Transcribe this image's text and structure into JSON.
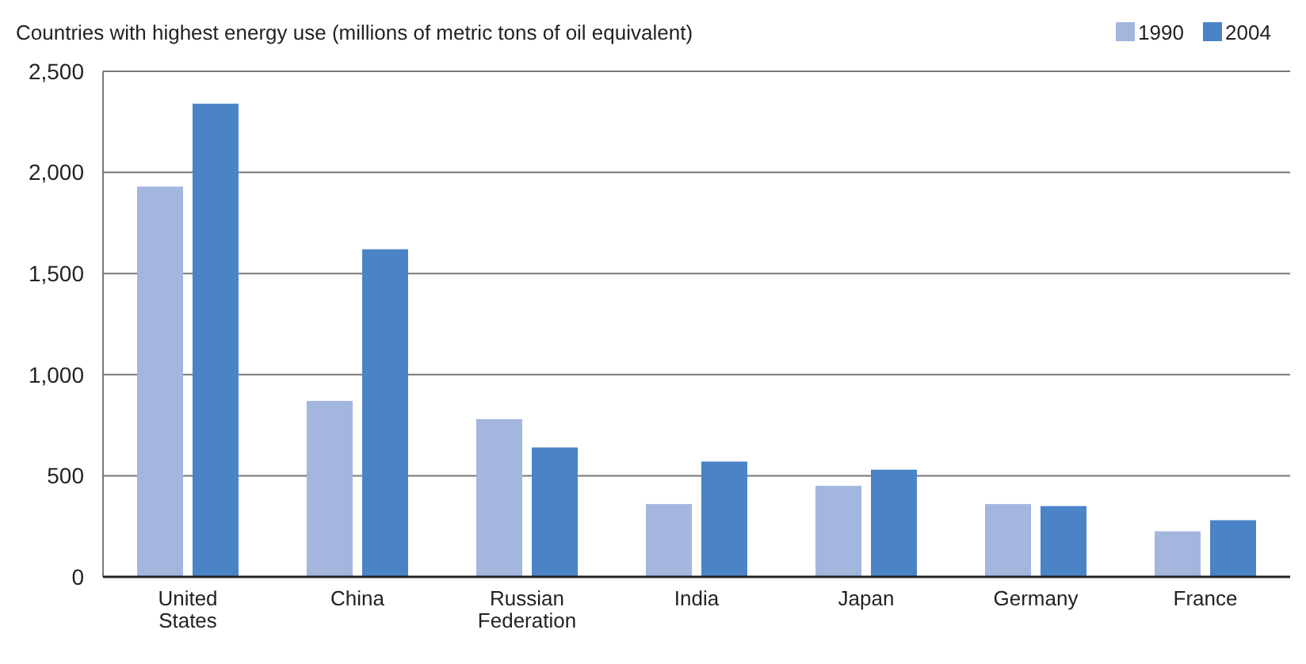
{
  "chart_data": {
    "type": "bar",
    "title": "Countries with highest energy use (millions of metric tons of oil equivalent)",
    "categories": [
      "United States",
      "China",
      "Russian Federation",
      "India",
      "Japan",
      "Germany",
      "France"
    ],
    "series": [
      {
        "name": "1990",
        "color": "#a3b6de",
        "values": [
          1930,
          870,
          780,
          360,
          450,
          360,
          225
        ]
      },
      {
        "name": "2004",
        "color": "#4a84c6",
        "values": [
          2340,
          1620,
          640,
          570,
          530,
          350,
          280
        ]
      }
    ],
    "ylim": [
      0,
      2500
    ],
    "yticks": [
      0,
      {
        "value": 500,
        "label": "500"
      },
      {
        "value": 1000,
        "label": "1,000"
      },
      {
        "value": 1500,
        "label": "1,500"
      },
      {
        "value": 2000,
        "label": "2,000"
      },
      {
        "value": 2500,
        "label": "2,500"
      }
    ],
    "grid": "y",
    "legend": "top right"
  }
}
